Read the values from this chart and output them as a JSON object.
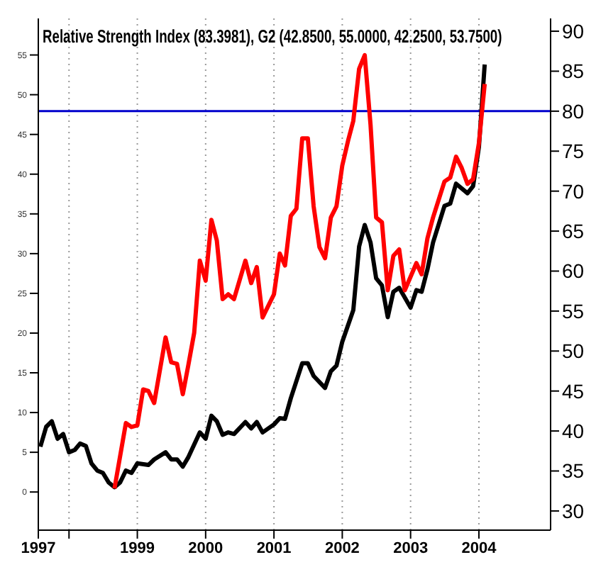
{
  "chart_data": {
    "type": "line",
    "title": "Relative Strength Index (83.3981), G2 (42.8500, 55.0000, 42.2500, 53.7500)",
    "series": [
      {
        "color": "#000000",
        "axis": "y",
        "x": [
          "1997-08",
          "1997-09",
          "1997-10",
          "1997-11",
          "1997-12",
          "1998-01",
          "1998-02",
          "1998-03",
          "1998-04",
          "1998-05",
          "1998-06",
          "1998-07",
          "1998-08",
          "1998-09",
          "1998-10",
          "1998-11",
          "1998-12",
          "1999-01",
          "1999-03",
          "1999-04",
          "1999-06",
          "1999-07",
          "1999-08",
          "1999-09",
          "1999-10",
          "1999-12",
          "2000-01",
          "2000-02",
          "2000-03",
          "2000-04",
          "2000-05",
          "2000-06",
          "2000-08",
          "2000-09",
          "2000-10",
          "2000-11",
          "2001-01",
          "2001-02",
          "2001-03",
          "2001-04",
          "2001-06",
          "2001-07",
          "2001-08",
          "2001-10",
          "2001-11",
          "2001-12",
          "2002-01",
          "2002-03",
          "2002-04",
          "2002-05",
          "2002-06",
          "2002-07",
          "2002-08",
          "2002-09",
          "2002-10",
          "2002-11",
          "2003-01",
          "2003-02",
          "2003-03",
          "2003-04",
          "2003-05",
          "2003-07",
          "2003-08",
          "2003-09",
          "2003-11",
          "2003-12",
          "2004-01",
          "2004-02"
        ],
        "values": [
          5.7,
          8.2,
          8.9,
          6.7,
          7.3,
          5.0,
          5.3,
          6.1,
          5.8,
          3.6,
          2.7,
          2.4,
          1.2,
          0.6,
          1.2,
          2.7,
          2.4,
          3.6,
          3.4,
          4.1,
          5.0,
          4.1,
          4.1,
          3.2,
          4.4,
          7.5,
          6.7,
          9.6,
          8.9,
          7.2,
          7.5,
          7.3,
          8.8,
          8.0,
          8.8,
          7.5,
          8.5,
          9.3,
          9.2,
          11.8,
          16.2,
          16.2,
          14.6,
          13.1,
          15.2,
          15.9,
          18.9,
          22.9,
          30.9,
          33.6,
          31.4,
          26.9,
          26.0,
          22.0,
          25.2,
          25.7,
          23.2,
          25.4,
          25.2,
          28.0,
          31.4,
          36.0,
          36.3,
          38.8,
          37.6,
          38.5,
          43.4,
          53.8
        ]
      },
      {
        "color": "#ff0000",
        "axis": "y2",
        "x": [
          "1998-09",
          "1998-11",
          "1998-12",
          "1999-01",
          "1999-02",
          "1999-03",
          "1999-04",
          "1999-06",
          "1999-07",
          "1999-08",
          "1999-09",
          "1999-10",
          "1999-11",
          "1999-12",
          "2000-01",
          "2000-02",
          "2000-03",
          "2000-04",
          "2000-05",
          "2000-06",
          "2000-08",
          "2000-09",
          "2000-10",
          "2000-11",
          "2001-01",
          "2001-02",
          "2001-03",
          "2001-04",
          "2001-05",
          "2001-06",
          "2001-07",
          "2001-08",
          "2001-09",
          "2001-10",
          "2001-11",
          "2001-12",
          "2002-01",
          "2002-02",
          "2002-03",
          "2002-04",
          "2002-05",
          "2002-06",
          "2002-07",
          "2002-08",
          "2002-09",
          "2002-10",
          "2002-11",
          "2002-12",
          "2003-02",
          "2003-03",
          "2003-04",
          "2003-05",
          "2003-07",
          "2003-08",
          "2003-09",
          "2003-10",
          "2003-11",
          "2003-12",
          "2004-01",
          "2004-02"
        ],
        "values": [
          32.8,
          41.0,
          40.5,
          40.7,
          45.2,
          45.0,
          43.5,
          51.7,
          48.6,
          48.4,
          44.6,
          48.3,
          52.3,
          61.3,
          58.8,
          66.4,
          63.8,
          56.5,
          57.1,
          56.5,
          61.3,
          58.5,
          60.5,
          54.2,
          57.1,
          62.2,
          60.7,
          66.9,
          67.8,
          76.6,
          76.6,
          68.1,
          63.0,
          61.6,
          66.7,
          68.1,
          73.2,
          76.3,
          78.8,
          85.3,
          87.0,
          78.3,
          66.7,
          66.1,
          57.6,
          61.9,
          62.7,
          57.6,
          61.0,
          59.6,
          64.1,
          66.7,
          71.2,
          71.7,
          74.3,
          72.9,
          70.9,
          71.5,
          76.0,
          83.4
        ]
      }
    ],
    "xlim": [
      "1997-07-21",
      "2005-01-19"
    ],
    "xticks": [
      {
        "value": "1997-07-21",
        "label": "1997"
      },
      {
        "value": "1998",
        "label": null
      },
      "1999",
      "2000",
      "2001",
      "2002",
      "2003",
      "2004"
    ],
    "ylim": [
      -4.8,
      59.6
    ],
    "yticks": [
      0,
      5,
      10,
      15,
      20,
      25,
      30,
      35,
      40,
      45,
      50,
      55
    ],
    "y2lim": [
      27.6,
      91.6
    ],
    "y2ticks": [
      30,
      35,
      40,
      45,
      50,
      55,
      60,
      65,
      70,
      75,
      80,
      85,
      90
    ],
    "ref_lines": [
      {
        "axis": "y2",
        "value": 80,
        "color": "#0000cc"
      }
    ],
    "grid": "x",
    "legend": false,
    "marker": "none",
    "line_style": "solid"
  }
}
